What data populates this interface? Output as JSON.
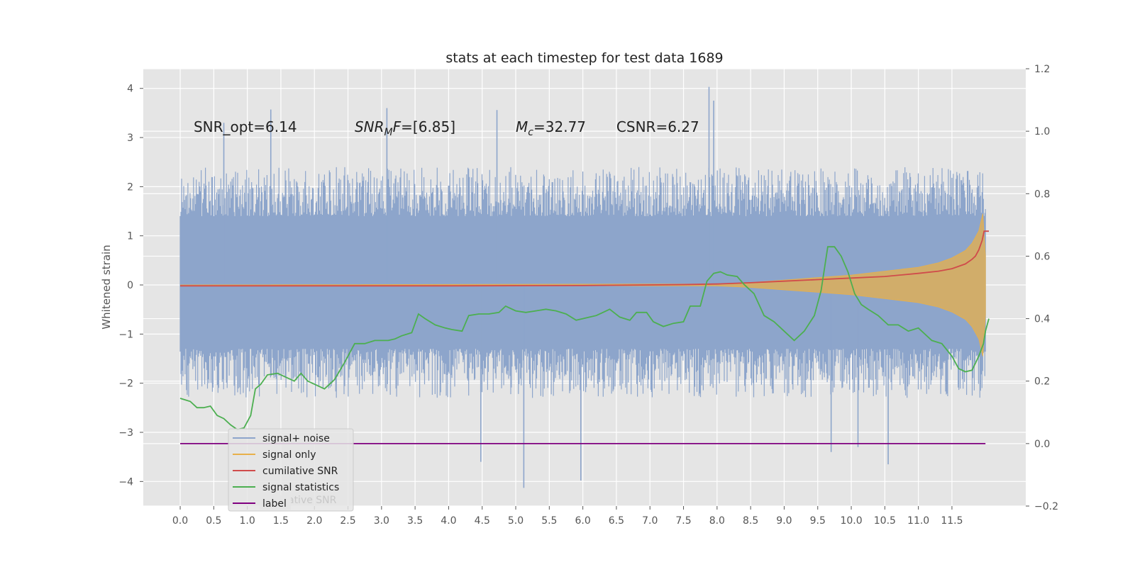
{
  "chart_data": {
    "type": "line",
    "title": "stats at each timestep for test data 1689",
    "ylabel": "Whitened strain",
    "xlim": [
      -0.55,
      12.6
    ],
    "ylim": [
      -4.5,
      4.4
    ],
    "y2lim": [
      -0.2,
      1.2
    ],
    "grid": true,
    "xticks": [
      0.0,
      0.5,
      1.0,
      1.5,
      2.0,
      2.5,
      3.0,
      3.5,
      4.0,
      4.5,
      5.0,
      5.5,
      6.0,
      6.5,
      7.0,
      7.5,
      8.0,
      8.5,
      9.0,
      9.5,
      10.0,
      10.5,
      11.0,
      11.5
    ],
    "xtick_labels": [
      "0.0",
      "0.5",
      "1.0",
      "1.5",
      "2.0",
      "2.5",
      "3.0",
      "3.5",
      "4.0",
      "4.5",
      "5.0",
      "5.5",
      "6.0",
      "6.5",
      "7.0",
      "7.5",
      "8.0",
      "8.5",
      "9.0",
      "9.5",
      "10.0",
      "10.5",
      "11.0",
      "11.5"
    ],
    "yticks": [
      -4,
      -3,
      -2,
      -1,
      0,
      1,
      2,
      3,
      4
    ],
    "ytick_labels": [
      "−4",
      "−3",
      "−2",
      "−1",
      "0",
      "1",
      "2",
      "3",
      "4"
    ],
    "y2ticks": [
      -0.2,
      0.0,
      0.2,
      0.4,
      0.6,
      0.8,
      1.0,
      1.2
    ],
    "y2tick_labels": [
      "−0.2",
      "0.0",
      "0.2",
      "0.4",
      "0.6",
      "0.8",
      "1.0",
      "1.2"
    ],
    "annotations": [
      {
        "text": "SNR_opt=6.14",
        "x": 0.2,
        "y": 3.2
      },
      {
        "text": "SNR_MF=[6.85]",
        "x": 2.6,
        "y": 3.2
      },
      {
        "text": "M_c=32.77",
        "x": 5.0,
        "y": 3.2
      },
      {
        "text": "CSNR=6.27",
        "x": 6.5,
        "y": 3.2
      }
    ],
    "legend": {
      "position": "lower-left",
      "entries": [
        "signal+ noise",
        "signal only",
        "cumilative SNR",
        "signal statistics",
        "label"
      ],
      "ghost_text": "cumilative SNR"
    },
    "series": [
      {
        "name": "signal+ noise",
        "color": "#8da5cb",
        "axis": "left",
        "x_range": [
          0.0,
          12.0
        ],
        "typical_envelope": [
          -2.3,
          2.4
        ],
        "extremes": [
          {
            "x": 1.35,
            "y": 3.57
          },
          {
            "x": 7.88,
            "y": 4.03
          },
          {
            "x": 7.95,
            "y": 3.75
          },
          {
            "x": 5.12,
            "y": -4.13
          },
          {
            "x": 5.97,
            "y": -3.98
          },
          {
            "x": 10.55,
            "y": -3.65
          },
          {
            "x": 4.48,
            "y": -3.6
          },
          {
            "x": 9.7,
            "y": -3.4
          },
          {
            "x": 10.1,
            "y": -3.3
          },
          {
            "x": 3.08,
            "y": 3.6
          },
          {
            "x": 4.72,
            "y": 3.56
          },
          {
            "x": 0.65,
            "y": 3.3
          }
        ]
      },
      {
        "name": "signal only",
        "color": "#e8b04a",
        "axis": "left",
        "amplitude": [
          [
            0.0,
            0.0
          ],
          [
            8.0,
            0.02
          ],
          [
            8.5,
            0.05
          ],
          [
            9.0,
            0.1
          ],
          [
            9.5,
            0.15
          ],
          [
            10.0,
            0.2
          ],
          [
            10.5,
            0.28
          ],
          [
            11.0,
            0.36
          ],
          [
            11.3,
            0.45
          ],
          [
            11.5,
            0.55
          ],
          [
            11.7,
            0.7
          ],
          [
            11.8,
            0.85
          ],
          [
            11.9,
            1.1
          ],
          [
            11.96,
            1.45
          ],
          [
            12.0,
            0.6
          ]
        ]
      },
      {
        "name": "cumilative SNR",
        "color": "#d04b4b",
        "axis": "right",
        "points": [
          [
            0.0,
            0.505
          ],
          [
            2.0,
            0.505
          ],
          [
            4.0,
            0.505
          ],
          [
            6.0,
            0.506
          ],
          [
            7.0,
            0.508
          ],
          [
            7.5,
            0.509
          ],
          [
            8.0,
            0.511
          ],
          [
            8.5,
            0.515
          ],
          [
            9.0,
            0.52
          ],
          [
            9.5,
            0.525
          ],
          [
            10.0,
            0.53
          ],
          [
            10.5,
            0.535
          ],
          [
            11.0,
            0.545
          ],
          [
            11.3,
            0.552
          ],
          [
            11.5,
            0.56
          ],
          [
            11.7,
            0.575
          ],
          [
            11.8,
            0.59
          ],
          [
            11.85,
            0.6
          ],
          [
            11.9,
            0.62
          ],
          [
            11.95,
            0.65
          ],
          [
            11.98,
            0.68
          ],
          [
            12.0,
            0.68
          ],
          [
            12.05,
            0.68
          ]
        ]
      },
      {
        "name": "signal statistics",
        "color": "#4caf50",
        "axis": "right",
        "points": [
          [
            0.0,
            0.145
          ],
          [
            0.15,
            0.135
          ],
          [
            0.25,
            0.115
          ],
          [
            0.35,
            0.115
          ],
          [
            0.45,
            0.12
          ],
          [
            0.55,
            0.09
          ],
          [
            0.65,
            0.08
          ],
          [
            0.75,
            0.06
          ],
          [
            0.85,
            0.045
          ],
          [
            0.95,
            0.05
          ],
          [
            1.05,
            0.09
          ],
          [
            1.12,
            0.175
          ],
          [
            1.2,
            0.19
          ],
          [
            1.3,
            0.22
          ],
          [
            1.45,
            0.225
          ],
          [
            1.6,
            0.21
          ],
          [
            1.7,
            0.2
          ],
          [
            1.8,
            0.225
          ],
          [
            1.9,
            0.2
          ],
          [
            2.0,
            0.19
          ],
          [
            2.15,
            0.175
          ],
          [
            2.3,
            0.205
          ],
          [
            2.45,
            0.26
          ],
          [
            2.6,
            0.32
          ],
          [
            2.75,
            0.32
          ],
          [
            2.9,
            0.33
          ],
          [
            3.1,
            0.33
          ],
          [
            3.2,
            0.335
          ],
          [
            3.3,
            0.345
          ],
          [
            3.45,
            0.355
          ],
          [
            3.55,
            0.415
          ],
          [
            3.65,
            0.4
          ],
          [
            3.8,
            0.38
          ],
          [
            3.95,
            0.37
          ],
          [
            4.05,
            0.365
          ],
          [
            4.2,
            0.36
          ],
          [
            4.3,
            0.41
          ],
          [
            4.45,
            0.415
          ],
          [
            4.6,
            0.415
          ],
          [
            4.75,
            0.42
          ],
          [
            4.85,
            0.44
          ],
          [
            5.0,
            0.425
          ],
          [
            5.15,
            0.42
          ],
          [
            5.3,
            0.425
          ],
          [
            5.45,
            0.43
          ],
          [
            5.6,
            0.425
          ],
          [
            5.75,
            0.415
          ],
          [
            5.9,
            0.395
          ],
          [
            6.0,
            0.4
          ],
          [
            6.1,
            0.405
          ],
          [
            6.2,
            0.41
          ],
          [
            6.3,
            0.42
          ],
          [
            6.4,
            0.43
          ],
          [
            6.55,
            0.405
          ],
          [
            6.7,
            0.395
          ],
          [
            6.8,
            0.42
          ],
          [
            6.95,
            0.42
          ],
          [
            7.05,
            0.39
          ],
          [
            7.2,
            0.375
          ],
          [
            7.35,
            0.385
          ],
          [
            7.5,
            0.39
          ],
          [
            7.6,
            0.44
          ],
          [
            7.75,
            0.44
          ],
          [
            7.85,
            0.52
          ],
          [
            7.95,
            0.545
          ],
          [
            8.05,
            0.55
          ],
          [
            8.15,
            0.54
          ],
          [
            8.3,
            0.535
          ],
          [
            8.4,
            0.51
          ],
          [
            8.55,
            0.48
          ],
          [
            8.7,
            0.41
          ],
          [
            8.85,
            0.39
          ],
          [
            9.0,
            0.36
          ],
          [
            9.15,
            0.33
          ],
          [
            9.3,
            0.36
          ],
          [
            9.45,
            0.41
          ],
          [
            9.55,
            0.49
          ],
          [
            9.65,
            0.63
          ],
          [
            9.75,
            0.63
          ],
          [
            9.85,
            0.6
          ],
          [
            9.95,
            0.55
          ],
          [
            10.05,
            0.48
          ],
          [
            10.15,
            0.445
          ],
          [
            10.25,
            0.43
          ],
          [
            10.4,
            0.41
          ],
          [
            10.55,
            0.38
          ],
          [
            10.7,
            0.38
          ],
          [
            10.85,
            0.36
          ],
          [
            11.0,
            0.37
          ],
          [
            11.1,
            0.35
          ],
          [
            11.2,
            0.33
          ],
          [
            11.35,
            0.32
          ],
          [
            11.5,
            0.28
          ],
          [
            11.6,
            0.24
          ],
          [
            11.7,
            0.23
          ],
          [
            11.8,
            0.235
          ],
          [
            11.9,
            0.28
          ],
          [
            11.97,
            0.32
          ],
          [
            12.0,
            0.36
          ],
          [
            12.05,
            0.4
          ]
        ]
      },
      {
        "name": "label",
        "color": "#800080",
        "axis": "right",
        "points": [
          [
            0.0,
            0.0
          ],
          [
            12.0,
            0.0
          ]
        ]
      }
    ]
  }
}
